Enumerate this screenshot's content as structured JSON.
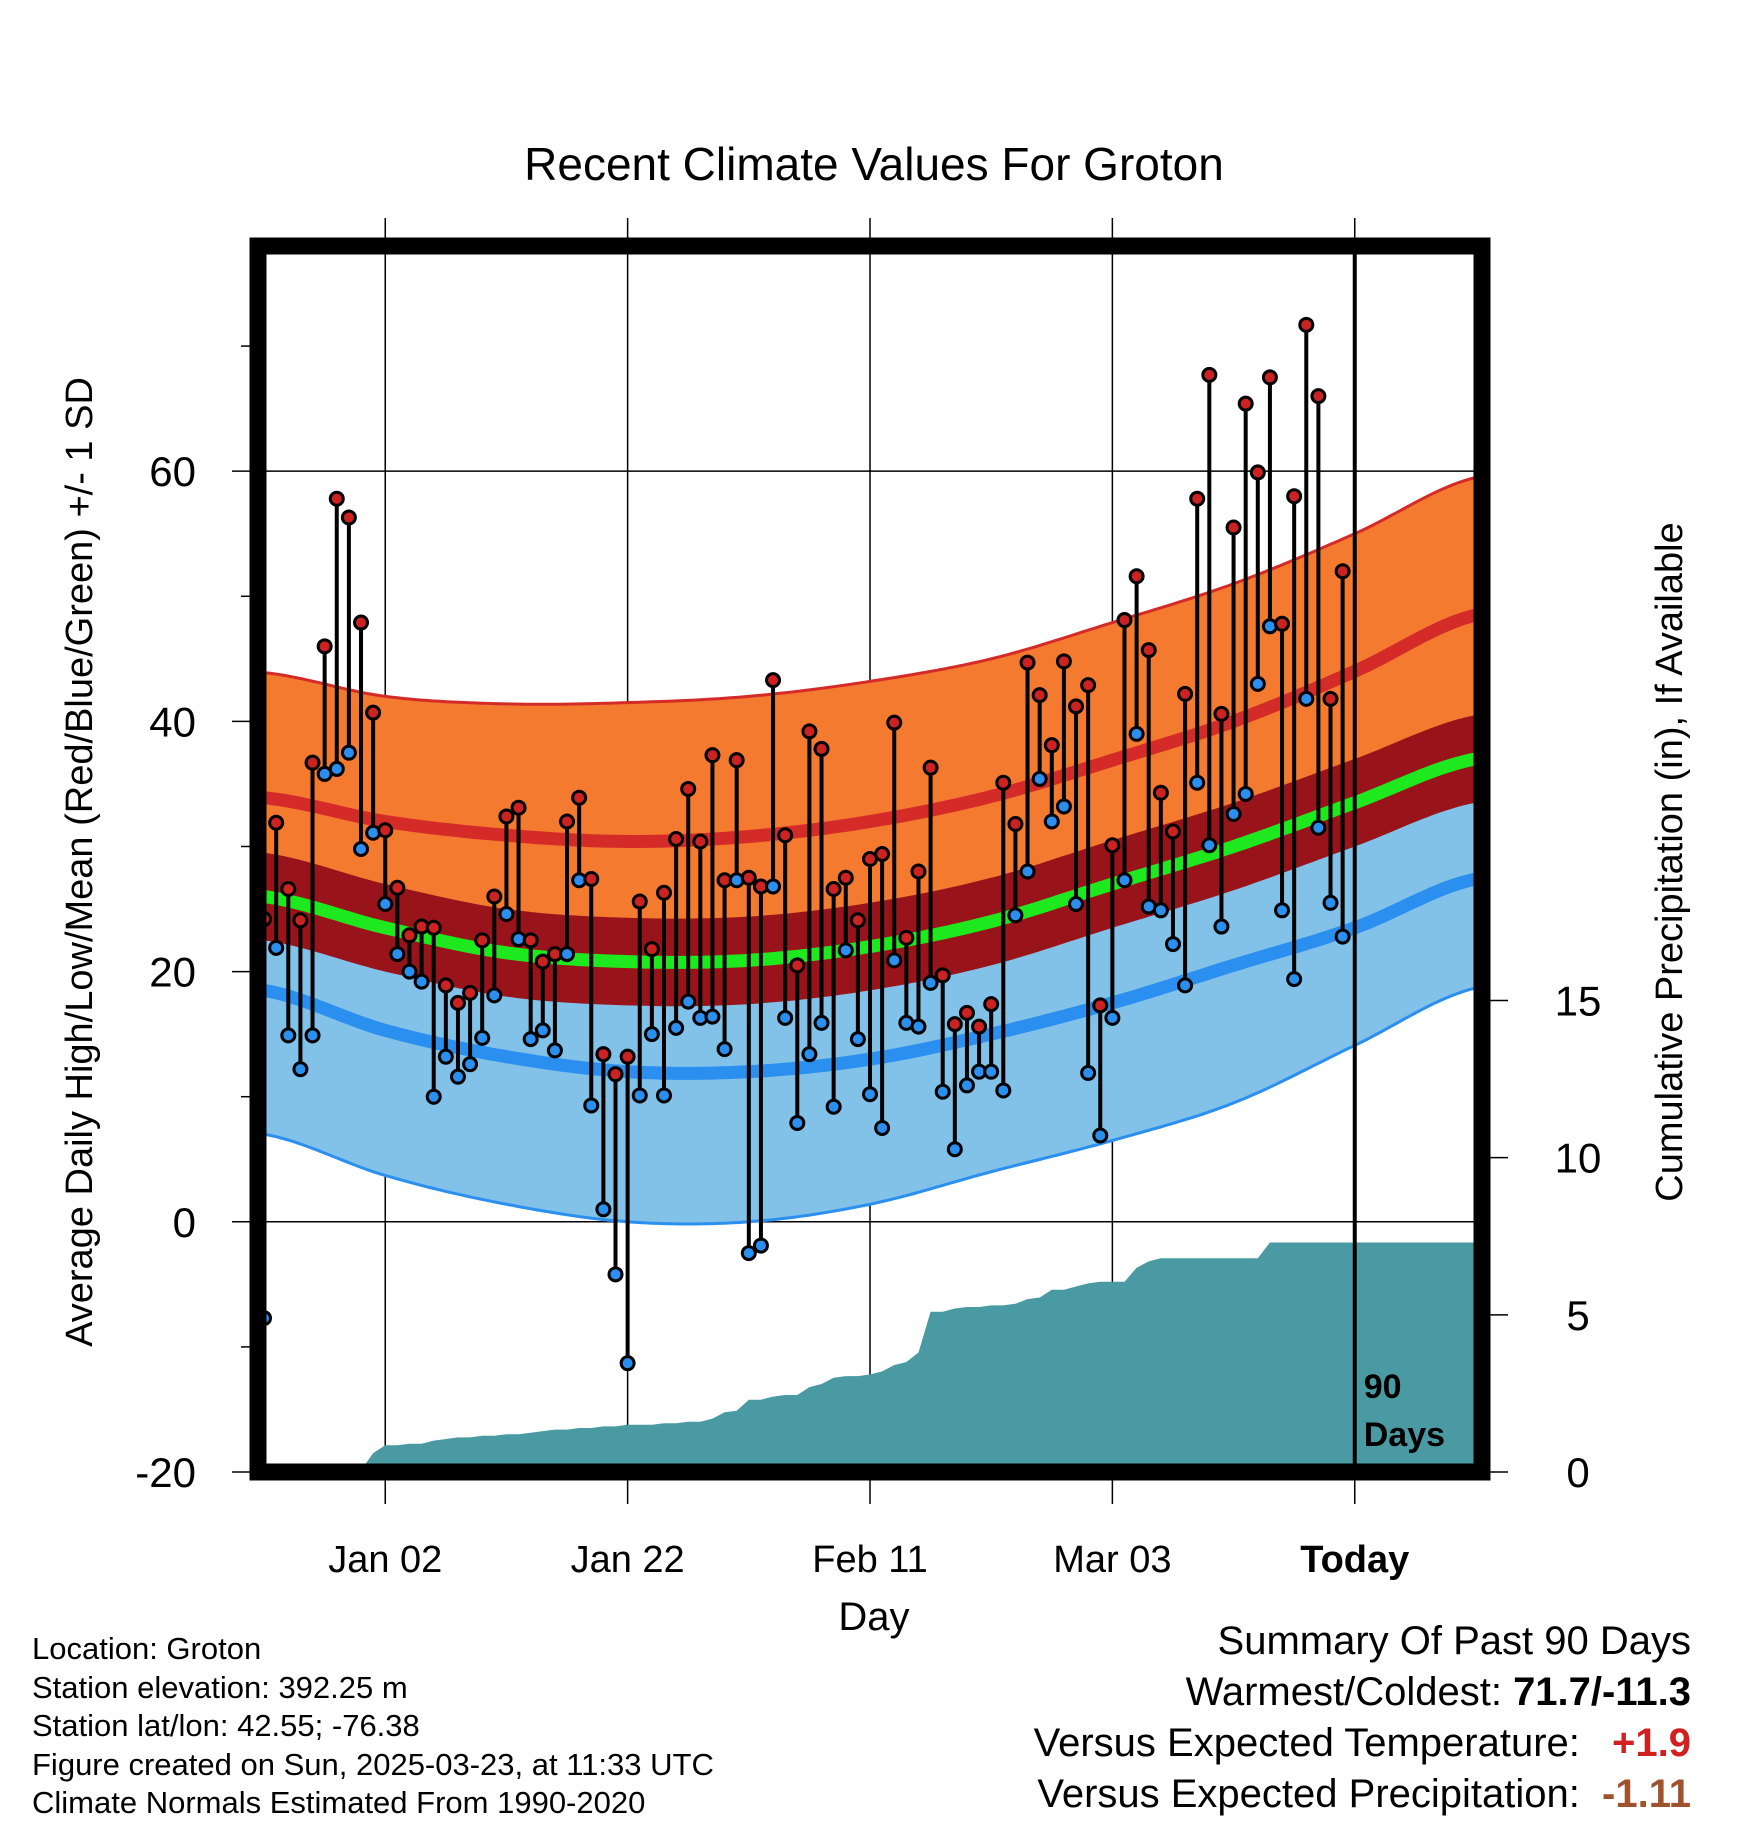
{
  "chart_data": {
    "type": "line",
    "title": "Recent Climate Values For Groton",
    "xlabel": "Day",
    "ylabel_left": "Average Daily High/Low/Mean (Red/Blue/Green) +/- 1 SD",
    "ylabel_right": "Cumulative Precipitation (in), If Available",
    "x_tick_labels": [
      "Jan 02",
      "Jan 22",
      "Feb 11",
      "Mar 03",
      "Today"
    ],
    "x_tick_days": [
      10,
      30,
      50,
      70,
      90
    ],
    "xlim_days": [
      -0.5,
      100.5
    ],
    "ylim_left": [
      -20,
      78
    ],
    "y_ticks_left": [
      -20,
      0,
      20,
      40,
      60
    ],
    "ylim_right": [
      0,
      39
    ],
    "y_ticks_right": [
      0,
      5,
      10,
      15
    ],
    "today_marker_label": [
      "90",
      "Days"
    ],
    "colors": {
      "high_band": "#f47a2f",
      "high_line": "#d42b28",
      "mean_band": "#98141a",
      "mean_line": "#1ee81e",
      "low_band": "#82c1e8",
      "low_line": "#2a8fee",
      "precip": "#4a9aa3",
      "high_dot": "#cc2222",
      "low_dot": "#2a8fee"
    },
    "normals": {
      "days": [
        0,
        10,
        20,
        30,
        40,
        50,
        60,
        70,
        80,
        90,
        100
      ],
      "high_mean": [
        33.9,
        32.0,
        30.9,
        30.4,
        30.8,
        32.0,
        34.0,
        36.9,
        40.0,
        44.0,
        48.5
      ],
      "high_sd": [
        10.0,
        10.0,
        10.5,
        11.1,
        11.2,
        11.2,
        11.0,
        11.0,
        11.0,
        11.0,
        11.0
      ],
      "mean_mean": [
        26.0,
        23.5,
        21.5,
        20.8,
        20.9,
        22.0,
        24.0,
        27.0,
        30.0,
        33.5,
        37.0
      ],
      "mean_sd": [
        3.5,
        3.5,
        3.5,
        3.5,
        3.5,
        3.5,
        3.5,
        3.5,
        3.5,
        3.5,
        3.5
      ],
      "low_mean": [
        18.5,
        15.3,
        13.2,
        12.0,
        12.0,
        13.0,
        15.0,
        17.5,
        20.5,
        23.5,
        27.4
      ],
      "low_sd": [
        11.5,
        11.6,
        11.8,
        12.0,
        12.0,
        11.6,
        11.0,
        11.0,
        11.0,
        9.4,
        8.7
      ]
    },
    "series": [
      {
        "name": "High",
        "days": [
          0,
          1,
          2,
          3,
          4,
          5,
          6,
          7,
          8,
          9,
          10,
          11,
          12,
          13,
          14,
          15,
          16,
          17,
          18,
          19,
          20,
          21,
          22,
          23,
          24,
          25,
          26,
          27,
          28,
          29,
          30,
          31,
          32,
          33,
          34,
          35,
          36,
          37,
          38,
          39,
          40,
          41,
          42,
          43,
          44,
          45,
          46,
          47,
          48,
          49,
          50,
          51,
          52,
          53,
          54,
          55,
          56,
          57,
          58,
          59,
          60,
          61,
          62,
          63,
          64,
          65,
          66,
          67,
          68,
          69,
          70,
          71,
          72,
          73,
          74,
          75,
          76,
          77,
          78,
          79,
          80,
          81,
          82,
          83,
          84,
          85,
          86,
          87,
          88,
          89,
          90
        ],
        "values": [
          24.2,
          31.9,
          26.6,
          24.1,
          36.7,
          46.0,
          57.8,
          56.3,
          47.9,
          40.7,
          31.3,
          26.7,
          22.9,
          23.6,
          23.5,
          18.9,
          17.5,
          18.3,
          22.5,
          26.0,
          32.4,
          33.1,
          22.5,
          20.8,
          21.4,
          32.0,
          33.9,
          27.4,
          13.4,
          11.8,
          13.2,
          25.6,
          21.8,
          26.3,
          30.6,
          34.6,
          30.4,
          37.3,
          27.3,
          36.9,
          27.5,
          26.8,
          43.3,
          30.9,
          20.5,
          39.2,
          37.8,
          26.6,
          27.5,
          24.1,
          29.0,
          29.4,
          39.9,
          22.7,
          28.0,
          36.3,
          19.7,
          15.8,
          16.7,
          15.6,
          17.4,
          35.1,
          31.8,
          44.7,
          42.1,
          38.1,
          44.8,
          41.2,
          42.9,
          17.3,
          30.1,
          48.1,
          51.6,
          45.7,
          34.3,
          31.2,
          42.2,
          57.8,
          67.7,
          40.6,
          55.5,
          65.4,
          59.9,
          67.5,
          47.8,
          58.0,
          71.7,
          66.0,
          41.8,
          52.0,
          null
        ]
      },
      {
        "name": "Low",
        "days": [
          0,
          1,
          2,
          3,
          4,
          5,
          6,
          7,
          8,
          9,
          10,
          11,
          12,
          13,
          14,
          15,
          16,
          17,
          18,
          19,
          20,
          21,
          22,
          23,
          24,
          25,
          26,
          27,
          28,
          29,
          30,
          31,
          32,
          33,
          34,
          35,
          36,
          37,
          38,
          39,
          40,
          41,
          42,
          43,
          44,
          45,
          46,
          47,
          48,
          49,
          50,
          51,
          52,
          53,
          54,
          55,
          56,
          57,
          58,
          59,
          60,
          61,
          62,
          63,
          64,
          65,
          66,
          67,
          68,
          69,
          70,
          71,
          72,
          73,
          74,
          75,
          76,
          77,
          78,
          79,
          80,
          81,
          82,
          83,
          84,
          85,
          86,
          87,
          88,
          89,
          90
        ],
        "values": [
          -7.7,
          21.9,
          14.9,
          12.2,
          14.9,
          35.8,
          36.2,
          37.5,
          29.8,
          31.1,
          25.4,
          21.4,
          20.0,
          19.2,
          10.0,
          13.2,
          11.6,
          12.6,
          14.7,
          18.1,
          24.6,
          22.6,
          14.6,
          15.3,
          13.7,
          21.4,
          27.3,
          9.3,
          1.0,
          -4.2,
          -11.3,
          10.1,
          15.0,
          10.1,
          15.5,
          17.6,
          16.3,
          16.4,
          13.8,
          27.3,
          -2.5,
          -1.9,
          26.8,
          16.3,
          7.9,
          13.4,
          15.9,
          9.2,
          21.7,
          14.6,
          10.2,
          7.5,
          20.9,
          15.9,
          15.6,
          19.1,
          10.4,
          5.8,
          10.9,
          12.0,
          12.0,
          10.5,
          24.5,
          28.0,
          35.4,
          32.0,
          33.2,
          25.4,
          11.9,
          6.9,
          16.3,
          27.3,
          39.0,
          25.2,
          24.9,
          22.2,
          18.9,
          35.1,
          30.1,
          23.6,
          32.6,
          34.2,
          43.0,
          47.6,
          24.9,
          19.4,
          41.8,
          31.5,
          25.5,
          22.8,
          null
        ]
      },
      {
        "name": "Cumulative Precipitation",
        "days": [
          0,
          1,
          2,
          3,
          4,
          5,
          6,
          7,
          8,
          9,
          10,
          11,
          12,
          13,
          14,
          15,
          16,
          17,
          18,
          19,
          20,
          21,
          22,
          23,
          24,
          25,
          26,
          27,
          28,
          29,
          30,
          31,
          32,
          33,
          34,
          35,
          36,
          37,
          38,
          39,
          40,
          41,
          42,
          43,
          44,
          45,
          46,
          47,
          48,
          49,
          50,
          51,
          52,
          53,
          54,
          55,
          56,
          57,
          58,
          59,
          60,
          61,
          62,
          63,
          64,
          65,
          66,
          67,
          68,
          69,
          70,
          71,
          72,
          73,
          74,
          75,
          76,
          77,
          78,
          79,
          80,
          81,
          82,
          83,
          84,
          85,
          86,
          87,
          88,
          89,
          90,
          91,
          92,
          93,
          94,
          95,
          96,
          97,
          98,
          99,
          100
        ],
        "values": [
          0,
          0,
          0,
          0,
          0,
          0,
          0,
          0,
          0.05,
          0.6,
          0.85,
          0.85,
          0.9,
          0.9,
          1.0,
          1.05,
          1.1,
          1.1,
          1.15,
          1.15,
          1.2,
          1.2,
          1.25,
          1.3,
          1.35,
          1.35,
          1.4,
          1.4,
          1.45,
          1.45,
          1.5,
          1.5,
          1.5,
          1.55,
          1.55,
          1.6,
          1.6,
          1.7,
          1.9,
          1.95,
          2.3,
          2.3,
          2.4,
          2.45,
          2.45,
          2.7,
          2.8,
          3.0,
          3.05,
          3.05,
          3.1,
          3.2,
          3.4,
          3.5,
          3.8,
          5.1,
          5.1,
          5.2,
          5.25,
          5.25,
          5.3,
          5.3,
          5.35,
          5.5,
          5.55,
          5.8,
          5.8,
          5.9,
          6.0,
          6.05,
          6.05,
          6.05,
          6.5,
          6.7,
          6.8,
          6.8,
          6.8,
          6.8,
          6.8,
          6.8,
          6.8,
          6.8,
          6.8,
          7.3,
          7.3,
          7.3,
          7.3,
          7.3,
          7.3,
          7.3,
          7.3,
          7.3,
          7.3,
          7.3,
          7.3,
          7.3,
          7.3,
          7.3,
          7.3,
          7.3,
          7.3
        ]
      }
    ]
  },
  "info": {
    "location": "Location: Groton",
    "elevation": "Station elevation: 392.25 m",
    "latlon": "Station lat/lon: 42.55; -76.38",
    "created": "Figure created on Sun, 2025-03-23, at 11:33 UTC",
    "normals": "Climate Normals Estimated From 1990-2020"
  },
  "summary": {
    "title": "Summary Of Past 90 Days",
    "warm_cold_label": "Warmest/Coldest:",
    "warm_cold_value": "71.7/-11.3",
    "temp_label": "Versus Expected Temperature:",
    "temp_value": "+1.9",
    "precip_label": "Versus Expected Precipitation:",
    "precip_value": "-1.11"
  }
}
